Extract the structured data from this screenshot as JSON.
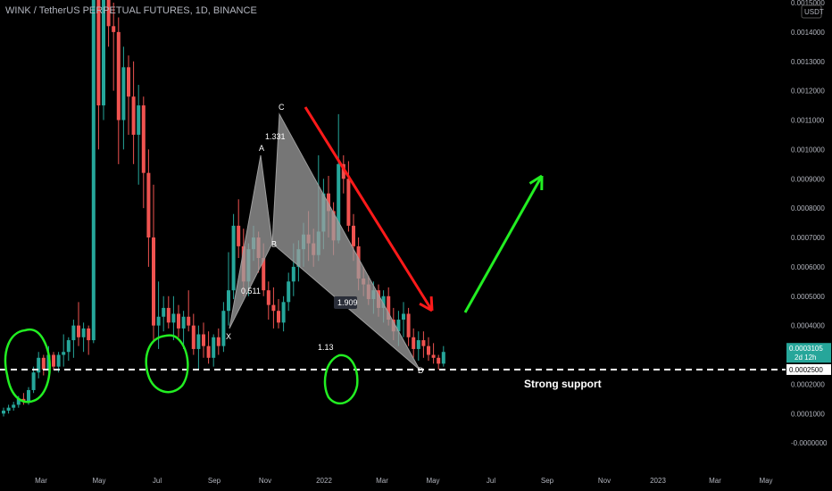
{
  "header": {
    "symbol_line": "WINK / TetherUS PERPETUAL FUTURES, 1D, BINANCE"
  },
  "colors": {
    "background": "#000000",
    "up": "#26a69a",
    "down": "#ef5350",
    "axis_text": "#b2b5be",
    "pattern_fill": "#9e9e9e",
    "arrow_down": "#ff1a1a",
    "arrow_up": "#22ee22",
    "circle": "#22ee22",
    "price_badge": "#26a69a",
    "support_badge": "#ffffff"
  },
  "chart_data": {
    "type": "candlestick",
    "currency_label": "USDT",
    "x_ticks": [
      "Mar",
      "May",
      "Jul",
      "Sep",
      "Nov",
      "2022",
      "Mar",
      "May",
      "Jul",
      "Sep",
      "Nov",
      "2023",
      "Mar",
      "May"
    ],
    "y_ticks": [
      "0.0015000",
      "0.0014000",
      "0.0013000",
      "0.0012000",
      "0.0011000",
      "0.0010000",
      "0.0009000",
      "0.0008000",
      "0.0007000",
      "0.0006000",
      "0.0005000",
      "0.0004000",
      "0.0003000",
      "0.0002000",
      "0.0001000",
      "-0.0000000"
    ],
    "ylim": [
      -3e-05,
      0.0015
    ],
    "current_price": {
      "value": 0.00031,
      "label": "0.0003105",
      "countdown": "2d 12h"
    },
    "support": {
      "value": 0.00025,
      "label": "0.0002500",
      "text": "Strong support"
    },
    "pattern": {
      "points": [
        {
          "name": "X",
          "price": 0.00039
        },
        {
          "name": "A",
          "price": 0.00098
        },
        {
          "name": "B",
          "price": 0.00068
        },
        {
          "name": "C",
          "price": 0.00112
        },
        {
          "name": "D",
          "price": 0.00025
        }
      ],
      "ratios": [
        "0.511",
        "1.331",
        "1.909",
        "1.13"
      ]
    },
    "candles": [
      [
        0.0001,
        0.00012,
        9e-05,
        0.00011
      ],
      [
        0.00011,
        0.00013,
        0.0001,
        0.00012
      ],
      [
        0.00012,
        0.00014,
        0.00011,
        0.00013
      ],
      [
        0.00013,
        0.00016,
        0.00012,
        0.00015
      ],
      [
        0.00015,
        0.00017,
        0.00013,
        0.00014
      ],
      [
        0.00014,
        0.00019,
        0.00013,
        0.00018
      ],
      [
        0.00018,
        0.00026,
        0.00017,
        0.00024
      ],
      [
        0.00024,
        0.00031,
        0.00022,
        0.00029
      ],
      [
        0.00029,
        0.0003,
        0.00023,
        0.00025
      ],
      [
        0.00025,
        0.00033,
        0.00024,
        0.0003
      ],
      [
        0.0003,
        0.00031,
        0.00025,
        0.00026
      ],
      [
        0.00026,
        0.00031,
        0.00024,
        0.0003
      ],
      [
        0.0003,
        0.00037,
        0.00026,
        0.00031
      ],
      [
        0.00031,
        0.00036,
        0.00028,
        0.00035
      ],
      [
        0.00035,
        0.00042,
        0.00029,
        0.0004
      ],
      [
        0.0004,
        0.00048,
        0.00033,
        0.00036
      ],
      [
        0.00036,
        0.00041,
        0.00031,
        0.00039
      ],
      [
        0.00039,
        0.0004,
        0.0003,
        0.00035
      ],
      [
        0.00035,
        0.0016,
        0.00034,
        0.00155
      ],
      [
        0.00155,
        0.0016,
        0.001,
        0.00115
      ],
      [
        0.00115,
        0.0016,
        0.0011,
        0.00152
      ],
      [
        0.00152,
        0.00158,
        0.00135,
        0.00142
      ],
      [
        0.00142,
        0.0015,
        0.0012,
        0.0014
      ],
      [
        0.0014,
        0.00145,
        0.00095,
        0.0011
      ],
      [
        0.0011,
        0.00135,
        0.001,
        0.00128
      ],
      [
        0.00128,
        0.00132,
        0.00105,
        0.00118
      ],
      [
        0.00118,
        0.0013,
        0.00095,
        0.00105
      ],
      [
        0.00105,
        0.00122,
        0.00088,
        0.00115
      ],
      [
        0.00115,
        0.00118,
        0.0008,
        0.00092
      ],
      [
        0.00092,
        0.001,
        0.0006,
        0.0007
      ],
      [
        0.0007,
        0.00088,
        0.00035,
        0.0004
      ],
      [
        0.0004,
        0.00055,
        0.00032,
        0.00043
      ],
      [
        0.00043,
        0.0005,
        0.00038,
        0.00046
      ],
      [
        0.00046,
        0.0005,
        0.00039,
        0.00041
      ],
      [
        0.00041,
        0.0005,
        0.00035,
        0.00044
      ],
      [
        0.00044,
        0.00047,
        0.00036,
        0.00039
      ],
      [
        0.00039,
        0.00045,
        0.00032,
        0.00043
      ],
      [
        0.00043,
        0.00052,
        0.00038,
        0.0004
      ],
      [
        0.0004,
        0.00044,
        0.0003,
        0.00032
      ],
      [
        0.00032,
        0.0004,
        0.00025,
        0.00037
      ],
      [
        0.00037,
        0.00041,
        0.00029,
        0.00033
      ],
      [
        0.00033,
        0.00038,
        0.00027,
        0.00029
      ],
      [
        0.00029,
        0.00037,
        0.00026,
        0.00036
      ],
      [
        0.00036,
        0.00039,
        0.0003,
        0.00033
      ],
      [
        0.00033,
        0.00048,
        0.00031,
        0.00045
      ],
      [
        0.00045,
        0.00065,
        0.0004,
        0.00052
      ],
      [
        0.00052,
        0.00078,
        0.00049,
        0.00074
      ],
      [
        0.00074,
        0.00083,
        0.00063,
        0.00067
      ],
      [
        0.00067,
        0.00073,
        0.0005,
        0.00055
      ],
      [
        0.00055,
        0.00068,
        0.0005,
        0.00066
      ],
      [
        0.00066,
        0.00074,
        0.00062,
        0.0007
      ],
      [
        0.0007,
        0.00072,
        0.00058,
        0.00063
      ],
      [
        0.00063,
        0.00068,
        0.0005,
        0.00052
      ],
      [
        0.00052,
        0.00055,
        0.00042,
        0.00047
      ],
      [
        0.00047,
        0.00053,
        0.00039,
        0.00045
      ],
      [
        0.00045,
        0.00049,
        0.00039,
        0.00041
      ],
      [
        0.00041,
        0.0005,
        0.00038,
        0.00048
      ],
      [
        0.00048,
        0.00058,
        0.00045,
        0.00055
      ],
      [
        0.00055,
        0.00068,
        0.0005,
        0.0006
      ],
      [
        0.0006,
        0.00069,
        0.00055,
        0.00066
      ],
      [
        0.00066,
        0.00075,
        0.0006,
        0.00071
      ],
      [
        0.00071,
        0.00079,
        0.00062,
        0.00068
      ],
      [
        0.00068,
        0.00073,
        0.0006,
        0.00064
      ],
      [
        0.00064,
        0.00098,
        0.00062,
        0.00072
      ],
      [
        0.00072,
        0.0009,
        0.00066,
        0.00085
      ],
      [
        0.00085,
        0.00091,
        0.0007,
        0.00079
      ],
      [
        0.00079,
        0.00082,
        0.00064,
        0.00069
      ],
      [
        0.00069,
        0.00112,
        0.00068,
        0.00095
      ],
      [
        0.00095,
        0.00098,
        0.00085,
        0.0009
      ],
      [
        0.0009,
        0.00096,
        0.00072,
        0.00074
      ],
      [
        0.00074,
        0.00078,
        0.00062,
        0.00067
      ],
      [
        0.00067,
        0.0007,
        0.00052,
        0.00056
      ],
      [
        0.00056,
        0.0006,
        0.0005,
        0.00054
      ],
      [
        0.00054,
        0.00057,
        0.00047,
        0.00049
      ],
      [
        0.00049,
        0.00055,
        0.00044,
        0.00052
      ],
      [
        0.00052,
        0.00054,
        0.00043,
        0.00046
      ],
      [
        0.00046,
        0.00052,
        0.00041,
        0.0005
      ],
      [
        0.0005,
        0.00053,
        0.0004,
        0.00042
      ],
      [
        0.00042,
        0.00046,
        0.00035,
        0.00038
      ],
      [
        0.00038,
        0.00045,
        0.00033,
        0.00042
      ],
      [
        0.00042,
        0.00048,
        0.00036,
        0.00044
      ],
      [
        0.00044,
        0.00046,
        0.00033,
        0.00036
      ],
      [
        0.00036,
        0.00039,
        0.00029,
        0.00032
      ],
      [
        0.00032,
        0.00038,
        0.00028,
        0.00035
      ],
      [
        0.00035,
        0.00038,
        0.00029,
        0.00033
      ],
      [
        0.00033,
        0.00036,
        0.00028,
        0.0003
      ],
      [
        0.0003,
        0.00034,
        0.00027,
        0.00029
      ],
      [
        0.00029,
        0.0003,
        0.00025,
        0.00027
      ],
      [
        0.00027,
        0.00033,
        0.00026,
        0.00031
      ]
    ]
  }
}
